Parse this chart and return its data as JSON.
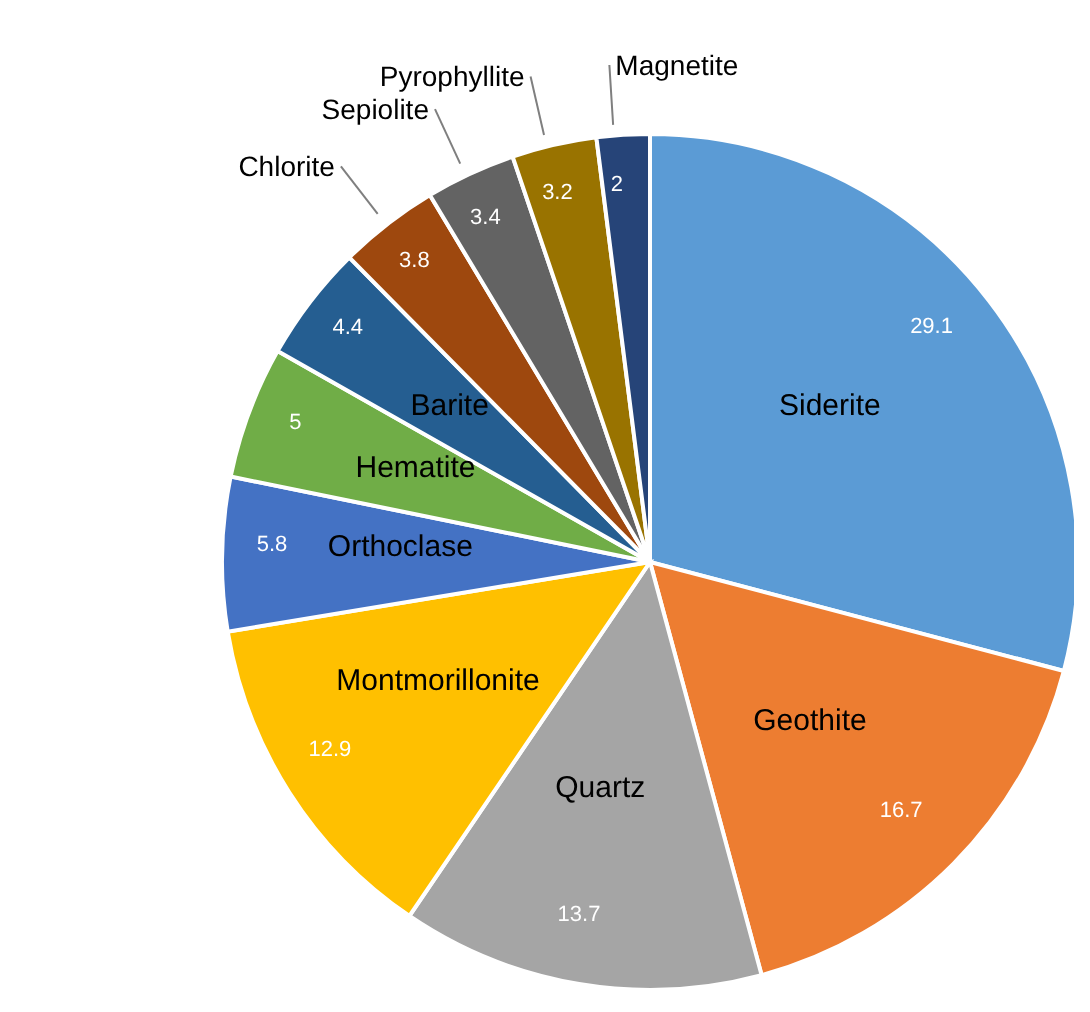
{
  "chart_data": {
    "type": "pie",
    "categories": [
      "Siderite",
      "Geothite",
      "Quartz",
      "Montmorillonite",
      "Orthoclase",
      "Hematite",
      "Barite",
      "Chlorite",
      "Sepiolite",
      "Pyrophyllite",
      "Magnetite"
    ],
    "values": [
      29.1,
      16.7,
      13.7,
      12.9,
      5.8,
      5,
      4.4,
      3.8,
      3.4,
      3.2,
      2
    ],
    "colors": [
      "#5b9bd5",
      "#ed7d31",
      "#a5a5a5",
      "#ffc000",
      "#4472c4",
      "#70ad47",
      "#255e91",
      "#9e480e",
      "#636363",
      "#997300",
      "#264478"
    ],
    "data_labels": true
  }
}
